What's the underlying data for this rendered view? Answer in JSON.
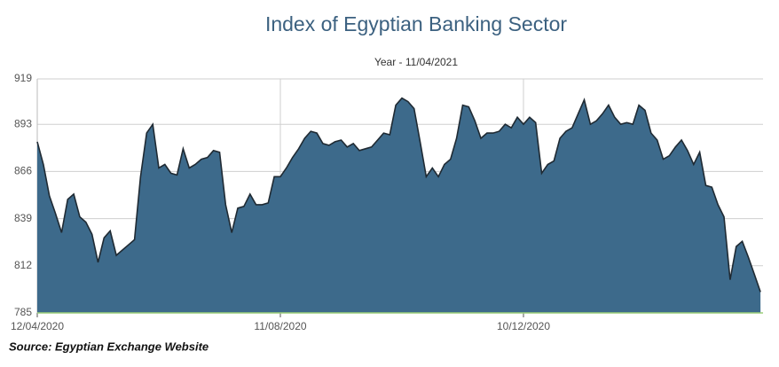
{
  "chart_data": {
    "type": "area",
    "title": "Index of Egyptian Banking Sector",
    "subtitle": "Year - 11/04/2021",
    "source": "Source: Egyptian Exchange Website",
    "categories": [
      "12/04/2020",
      null,
      null,
      null,
      null,
      null,
      null,
      null,
      null,
      null,
      null,
      null,
      null,
      null,
      null,
      null,
      null,
      null,
      null,
      null,
      null,
      null,
      null,
      null,
      null,
      null,
      null,
      null,
      null,
      null,
      null,
      null,
      null,
      null,
      null,
      null,
      null,
      null,
      null,
      null,
      "11/08/2020",
      null,
      null,
      null,
      null,
      null,
      null,
      null,
      null,
      null,
      null,
      null,
      null,
      null,
      null,
      null,
      null,
      null,
      null,
      null,
      null,
      null,
      null,
      null,
      null,
      null,
      null,
      null,
      null,
      null,
      null,
      null,
      null,
      null,
      null,
      null,
      null,
      null,
      null,
      null,
      "10/12/2020",
      null,
      null,
      null,
      null,
      null,
      null,
      null,
      null,
      null,
      null,
      null,
      null,
      null,
      null,
      null,
      null,
      null,
      null,
      null,
      null,
      null,
      null,
      null,
      null,
      null,
      null,
      null,
      null,
      null,
      null,
      null,
      null,
      null,
      null,
      null,
      null,
      null,
      null,
      null
    ],
    "values": [
      883,
      870,
      852,
      842,
      831,
      850,
      853,
      840,
      837,
      830,
      814,
      828,
      832,
      818,
      821,
      824,
      827,
      863,
      888,
      893,
      868,
      870,
      865,
      864,
      879,
      868,
      870,
      873,
      874,
      878,
      877,
      847,
      831,
      845,
      846,
      853,
      847,
      847,
      848,
      863,
      863,
      868,
      874,
      879,
      885,
      889,
      888,
      882,
      881,
      883,
      884,
      880,
      882,
      878,
      879,
      880,
      884,
      888,
      887,
      904,
      908,
      906,
      902,
      883,
      863,
      868,
      863,
      870,
      873,
      885,
      904,
      903,
      895,
      885,
      888,
      888,
      889,
      893,
      891,
      897,
      893,
      897,
      894,
      865,
      870,
      872,
      885,
      889,
      891,
      899,
      907,
      893,
      895,
      899,
      904,
      897,
      893,
      894,
      893,
      904,
      901,
      888,
      884,
      873,
      875,
      880,
      884,
      878,
      870,
      877,
      858,
      857,
      847,
      840,
      804,
      823,
      826,
      817,
      807,
      797
    ],
    "color": "#3d6a8b",
    "line_color": "#1f2a33",
    "ylim": [
      785,
      919
    ],
    "yticks": [
      785,
      812,
      839,
      866,
      893,
      919
    ],
    "grid": true
  }
}
